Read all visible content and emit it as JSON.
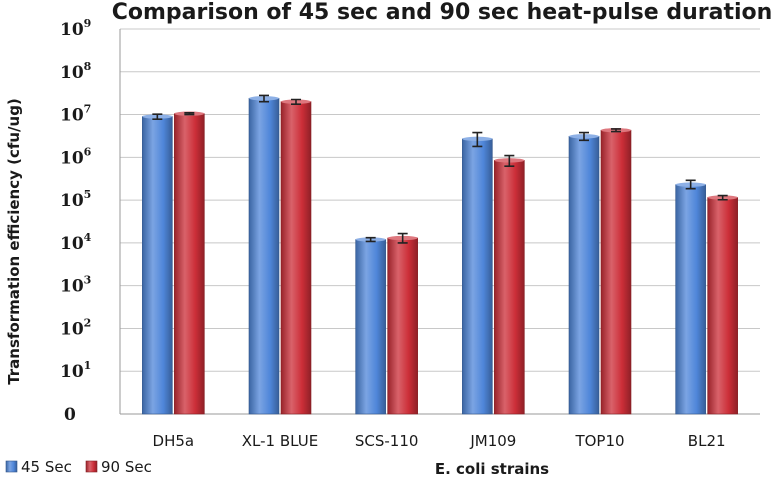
{
  "chart_data": {
    "type": "bar",
    "title": "Comparison of 45 sec and 90 sec heat-pulse duration",
    "xlabel": "E. coli strains",
    "ylabel": "Transformation efficiency (cfu/ug)",
    "yscale": "log",
    "ylim": [
      1,
      1000000000
    ],
    "y_ticks": [
      {
        "base": "0",
        "exp": ""
      },
      {
        "base": "10",
        "exp": "1"
      },
      {
        "base": "10",
        "exp": "2"
      },
      {
        "base": "10",
        "exp": "3"
      },
      {
        "base": "10",
        "exp": "4"
      },
      {
        "base": "10",
        "exp": "5"
      },
      {
        "base": "10",
        "exp": "6"
      },
      {
        "base": "10",
        "exp": "7"
      },
      {
        "base": "10",
        "exp": "8"
      },
      {
        "base": "10",
        "exp": "9"
      }
    ],
    "grid": true,
    "legend_position": "bottom-left",
    "categories": [
      "DH5a",
      "XL-1 BLUE",
      "SCS-110",
      "JM109",
      "TOP10",
      "BL21"
    ],
    "series": [
      {
        "name": "45 Sec",
        "color": "#4f86d9",
        "values": [
          9000000,
          24000000,
          12000,
          2700000,
          3100000,
          230000
        ],
        "err_low": [
          7800000,
          20000000,
          10800,
          1800000,
          2500000,
          185000
        ],
        "err_high": [
          10200000,
          28000000,
          13200,
          3800000,
          3800000,
          290000
        ]
      },
      {
        "name": "90 Sec",
        "color": "#cc2e38",
        "values": [
          10500000,
          20000000,
          13000,
          850000,
          4300000,
          115000
        ],
        "err_low": [
          10000000,
          17500000,
          10000,
          620000,
          4000000,
          102000
        ],
        "err_high": [
          11000000,
          22500000,
          16500,
          1100000,
          4600000,
          128000
        ]
      }
    ]
  }
}
